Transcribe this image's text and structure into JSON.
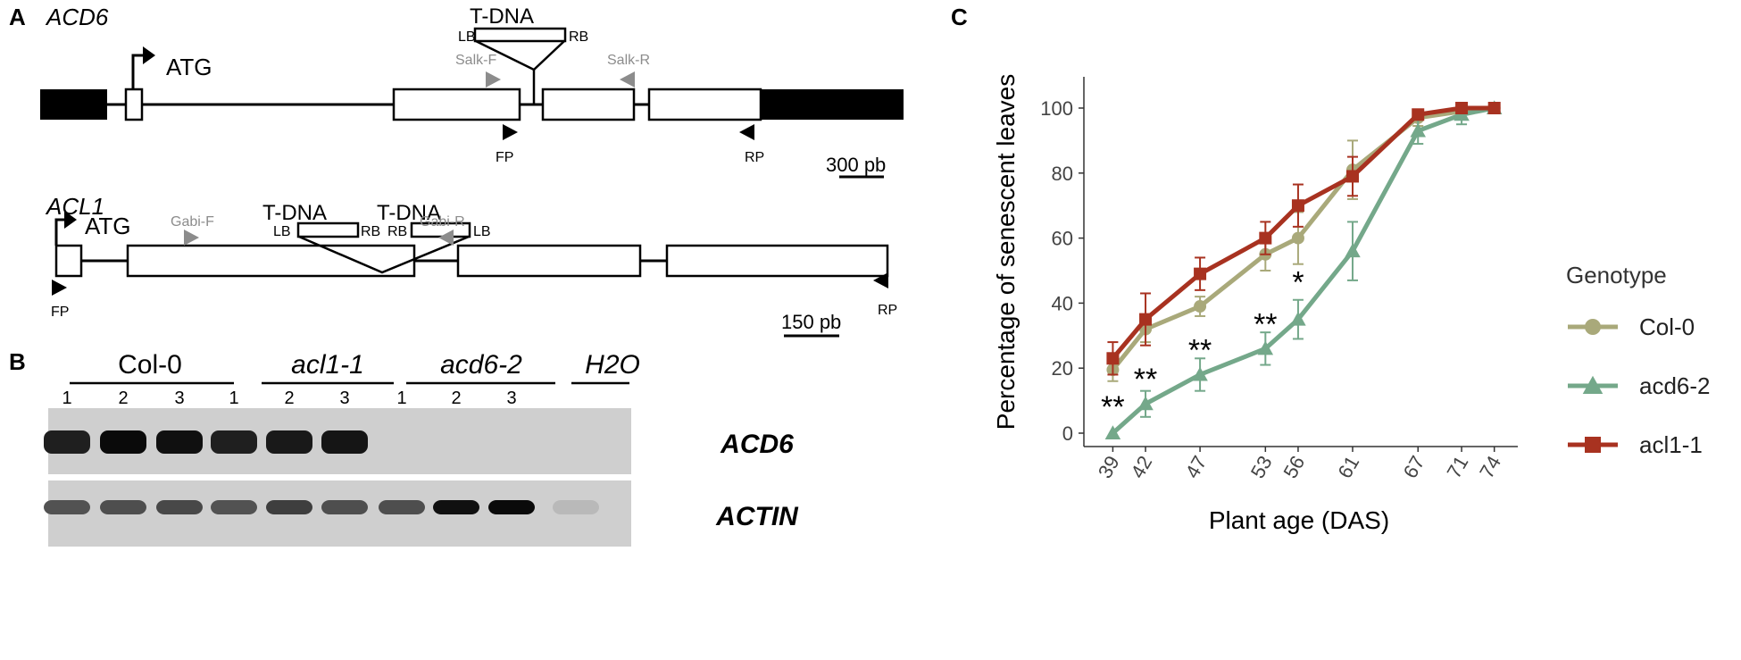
{
  "panels": {
    "a": "A",
    "b": "B",
    "c": "C"
  },
  "panel_a": {
    "acd6": {
      "gene": "ACD6",
      "atg": "ATG",
      "tdna": "T-DNA",
      "lb": "LB",
      "rb": "RB",
      "salk_f": "Salk-F",
      "salk_r": "Salk-R",
      "fp": "FP",
      "rp": "RP",
      "scale": "300 pb"
    },
    "acl1": {
      "gene": "ACL1",
      "atg": "ATG",
      "tdna1": "T-DNA",
      "tdna2": "T-DNA",
      "lb1": "LB",
      "rb1": "RB",
      "rb2": "RB",
      "lb2": "LB",
      "gabi_f": "Gabi-F",
      "gabi_r": "Gabi-R",
      "fp": "FP",
      "rp": "RP",
      "scale": "150 pb"
    },
    "colors": {
      "primer_gray": "#8c8c8c",
      "exon_fill": "#ffffff",
      "utr_fill": "#000000"
    }
  },
  "panel_b": {
    "groups": [
      "Col-0",
      "acl1-1",
      "acd6-2",
      "H2O"
    ],
    "lanes": [
      "1",
      "2",
      "3",
      "1",
      "2",
      "3",
      "1",
      "2",
      "3"
    ],
    "gel_labels": [
      "ACD6",
      "ACTIN"
    ],
    "band_intensity": {
      "ACD6": [
        0.85,
        0.95,
        0.92,
        0.85,
        0.88,
        0.9,
        0,
        0,
        0,
        0
      ],
      "ACTIN": [
        0.6,
        0.62,
        0.65,
        0.6,
        0.7,
        0.62,
        0.62,
        0.92,
        0.95,
        0.1
      ]
    }
  },
  "chart_data": {
    "type": "line",
    "xlabel": "Plant age (DAS)",
    "ylabel": "Percentage of senescent leaves",
    "x": [
      39,
      42,
      47,
      53,
      56,
      61,
      67,
      71,
      74
    ],
    "ylim": [
      0,
      105
    ],
    "yticks": [
      0,
      20,
      40,
      60,
      80,
      100
    ],
    "grid": false,
    "legend": {
      "title": "Genotype",
      "position": "right"
    },
    "series": [
      {
        "name": "Col-0",
        "marker": "circle",
        "color": "#a9a97a",
        "values": [
          19.5,
          32,
          39,
          55,
          60,
          81,
          97,
          99,
          100
        ],
        "errors": [
          3.5,
          4,
          3,
          5,
          8,
          9,
          2.5,
          2,
          1
        ]
      },
      {
        "name": "acd6-2",
        "marker": "triangle",
        "color": "#74a88a",
        "values": [
          0,
          9,
          18,
          26,
          35,
          56,
          93,
          98,
          100
        ],
        "errors": [
          0,
          4,
          5,
          5,
          6,
          9,
          4,
          3,
          1.5
        ]
      },
      {
        "name": "acl1-1",
        "marker": "square",
        "color": "#a83220",
        "values": [
          23,
          35,
          49,
          60,
          70,
          79,
          98,
          100,
          100
        ],
        "errors": [
          5,
          8,
          5,
          5,
          6.5,
          6,
          1.5,
          1,
          1
        ]
      }
    ],
    "annotations": [
      {
        "x": 39,
        "y": 0,
        "text": "**"
      },
      {
        "x": 42,
        "y": 9,
        "text": "**"
      },
      {
        "x": 47,
        "y": 18,
        "text": "**"
      },
      {
        "x": 53,
        "y": 26,
        "text": "**"
      },
      {
        "x": 56,
        "y": 35,
        "text": "*"
      }
    ]
  }
}
